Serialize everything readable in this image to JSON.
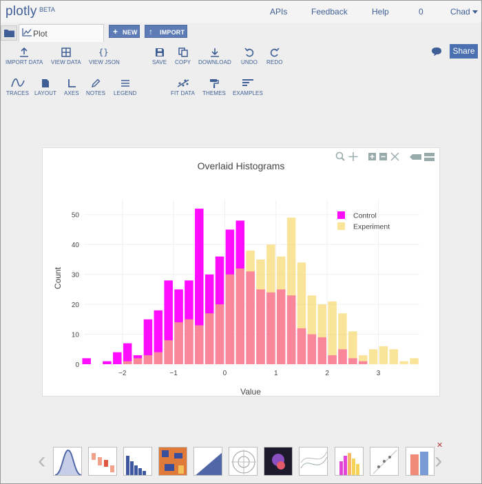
{
  "nav": {
    "logo": "plotly",
    "beta": "BETA",
    "links": [
      "APIs",
      "Feedback",
      "Help",
      "0",
      "Chad"
    ]
  },
  "tabs": {
    "plot_tab": "Plot",
    "new_label": "NEW",
    "import_label": "IMPORT"
  },
  "toolbar": {
    "row1": [
      "IMPORT DATA",
      "VIEW DATA",
      "VIEW JSON",
      "SAVE",
      "COPY",
      "DOWNLOAD",
      "UNDO",
      "REDO"
    ],
    "row2": [
      "TRACES",
      "LAYOUT",
      "AXES",
      "NOTES",
      "LEGEND",
      "FIT DATA",
      "THEMES",
      "EXAMPLES"
    ],
    "share": "Share"
  },
  "colors": {
    "accent": "#3f5e95",
    "control": "#ff00ff",
    "experiment": "#f7d35a",
    "overlap": "#f8a686"
  },
  "chart_data": {
    "type": "bar",
    "title": "Overlaid Histograms",
    "xlabel": "Value",
    "ylabel": "Count",
    "ylim": [
      0,
      55
    ],
    "xlim": [
      -2.75,
      3.8
    ],
    "xticks": [
      -2,
      -1,
      0,
      1,
      2,
      3
    ],
    "xtick_labels": [
      "−2",
      "−1",
      "0",
      "1",
      "2",
      "3"
    ],
    "yticks": [
      0,
      10,
      20,
      30,
      40,
      50
    ],
    "bin_width": 0.2,
    "legend_position": "top-right",
    "series": [
      {
        "name": "Control",
        "color": "#ff00ff",
        "x": [
          -2.7,
          -2.3,
          -2.1,
          -1.9,
          -1.7,
          -1.5,
          -1.3,
          -1.1,
          -0.9,
          -0.7,
          -0.5,
          -0.3,
          -0.1,
          0.1,
          0.3,
          0.5,
          0.7,
          0.9,
          1.1,
          1.3,
          1.5,
          1.7,
          1.9,
          2.1,
          2.3,
          2.5,
          2.7,
          2.9,
          3.1,
          3.3,
          3.5,
          3.7
        ],
        "values": [
          2,
          1,
          4,
          7,
          3,
          15,
          18,
          28,
          25,
          28,
          52,
          30,
          36,
          45,
          48,
          31,
          25,
          24,
          25,
          23,
          12,
          10,
          9,
          3,
          5,
          2,
          1,
          0,
          0,
          0,
          0,
          0
        ]
      },
      {
        "name": "Experiment",
        "color": "#f7d35a",
        "x": [
          -2.7,
          -2.3,
          -2.1,
          -1.9,
          -1.7,
          -1.5,
          -1.3,
          -1.1,
          -0.9,
          -0.7,
          -0.5,
          -0.3,
          -0.1,
          0.1,
          0.3,
          0.5,
          0.7,
          0.9,
          1.1,
          1.3,
          1.5,
          1.7,
          1.9,
          2.1,
          2.3,
          2.5,
          2.7,
          2.9,
          3.1,
          3.3,
          3.5,
          3.7
        ],
        "values": [
          0,
          0,
          0,
          1,
          2,
          3,
          4,
          8,
          14,
          15,
          13,
          17,
          20,
          30,
          32,
          38,
          35,
          40,
          36,
          49,
          34,
          23,
          20,
          21,
          17,
          11,
          3,
          5,
          6,
          5,
          1,
          2
        ]
      }
    ]
  }
}
